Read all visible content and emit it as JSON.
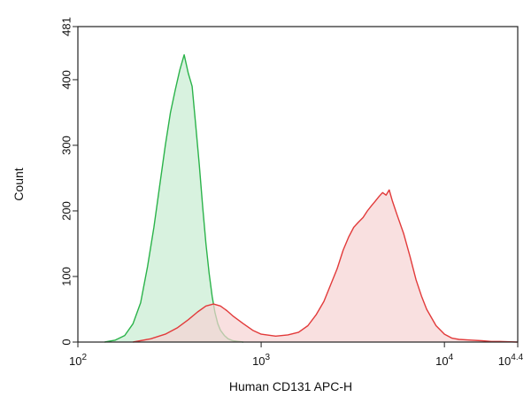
{
  "chart_data": {
    "type": "area",
    "title": "",
    "xlabel": "Human CD131 APC-H",
    "ylabel": "Count",
    "x_scale": "log",
    "xlim": [
      100,
      25118.86
    ],
    "ylim": [
      0,
      481
    ],
    "grid": false,
    "x_ticks": [
      {
        "value": 100,
        "base": "10",
        "exp": "2"
      },
      {
        "value": 1000,
        "base": "10",
        "exp": "3"
      },
      {
        "value": 10000,
        "base": "10",
        "exp": "4"
      },
      {
        "value": 25118.86,
        "base": "10",
        "exp": "4.4"
      }
    ],
    "y_ticks": [
      0,
      100,
      200,
      300,
      400,
      481
    ],
    "series": [
      {
        "color_stroke": "#2bb34a",
        "color_fill": "#c8ecd2",
        "x": [
          140,
          160,
          180,
          200,
          220,
          240,
          260,
          280,
          300,
          320,
          340,
          360,
          380,
          400,
          420,
          440,
          460,
          480,
          500,
          520,
          540,
          560,
          580,
          600,
          630,
          660,
          700,
          750,
          800
        ],
        "values": [
          0,
          3,
          10,
          28,
          60,
          115,
          175,
          240,
          300,
          350,
          385,
          415,
          438,
          410,
          390,
          330,
          270,
          205,
          150,
          105,
          70,
          45,
          28,
          18,
          10,
          5,
          2,
          1,
          0
        ]
      },
      {
        "color_stroke": "#e23a3a",
        "color_fill": "#f7d3d3",
        "x": [
          200,
          250,
          300,
          350,
          400,
          450,
          500,
          550,
          600,
          650,
          700,
          800,
          900,
          1000,
          1200,
          1400,
          1600,
          1800,
          2000,
          2200,
          2400,
          2600,
          2800,
          3000,
          3200,
          3400,
          3600,
          3800,
          4000,
          4200,
          4400,
          4600,
          4800,
          5000,
          5200,
          5500,
          6000,
          6500,
          7000,
          7500,
          8000,
          9000,
          10000,
          11000,
          12000,
          14000,
          16000,
          18000,
          20000,
          25000
        ],
        "values": [
          0,
          5,
          12,
          22,
          34,
          46,
          55,
          58,
          55,
          48,
          40,
          28,
          18,
          12,
          9,
          11,
          15,
          25,
          42,
          62,
          88,
          112,
          140,
          160,
          175,
          183,
          190,
          200,
          208,
          215,
          222,
          228,
          224,
          232,
          215,
          195,
          165,
          130,
          95,
          70,
          50,
          25,
          12,
          6,
          4,
          3,
          2,
          1,
          1,
          0
        ]
      }
    ]
  }
}
